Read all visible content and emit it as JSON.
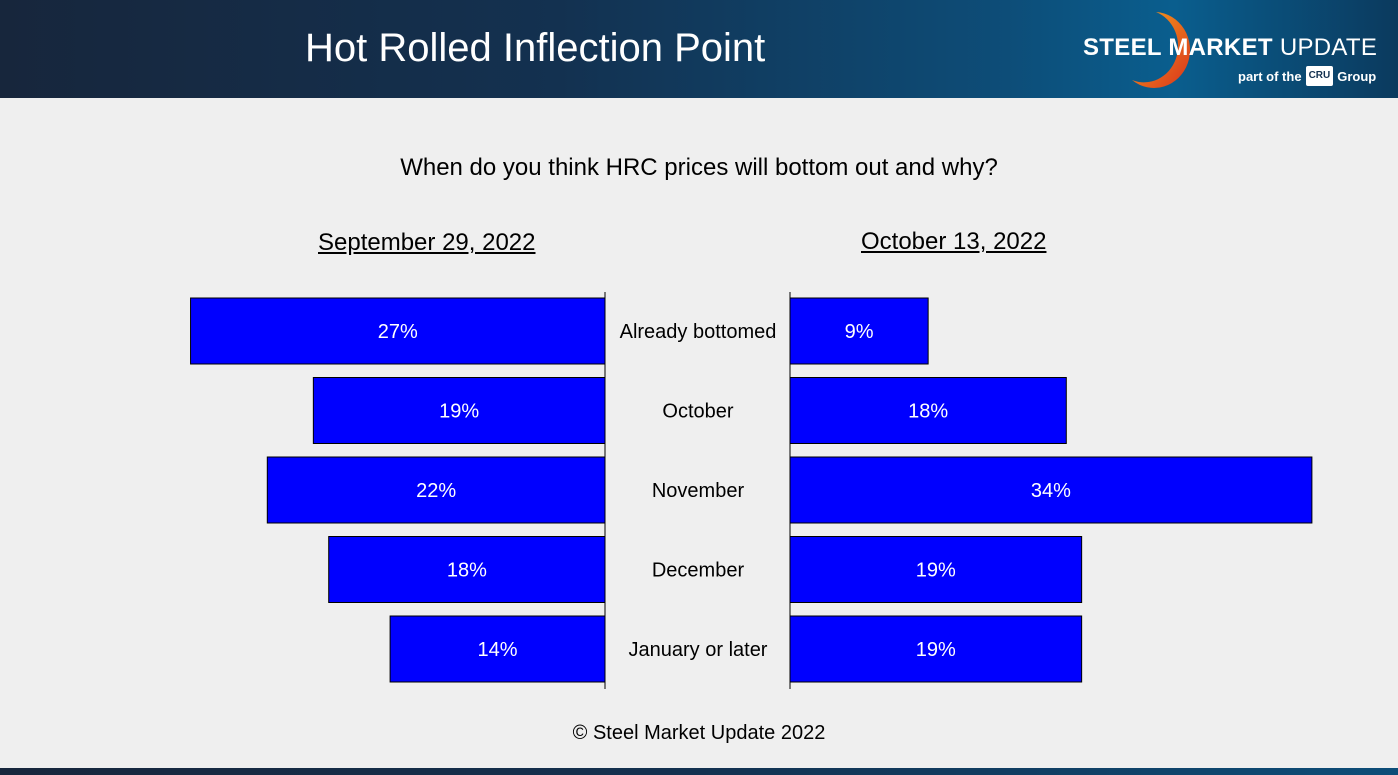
{
  "header": {
    "title": "Hot Rolled Inflection Point",
    "logo_bold": "STEEL MARKET",
    "logo_light": "UPDATE",
    "logo_sub_prefix": "part of the",
    "logo_badge": "CRU",
    "logo_sub_suffix": "Group"
  },
  "colors": {
    "bar": "#0000ff",
    "bar_border": "#000000",
    "label": "#ffffff"
  },
  "chart_data": {
    "type": "bar",
    "title": "When do you think HRC prices will bottom out and why?",
    "categories": [
      "Already bottomed",
      "October",
      "November",
      "December",
      "January or later"
    ],
    "series": [
      {
        "name": "September 29, 2022",
        "values": [
          27,
          19,
          22,
          18,
          14
        ],
        "labels": [
          "27%",
          "19%",
          "22%",
          "18%",
          "14%"
        ]
      },
      {
        "name": "October 13, 2022",
        "values": [
          9,
          18,
          34,
          19,
          19
        ],
        "labels": [
          "9%",
          "18%",
          "34%",
          "19%",
          "19%"
        ]
      }
    ],
    "unit": "%",
    "orientation": "horizontal-butterfly"
  },
  "footer": {
    "copyright": "© Steel Market Update 2022"
  }
}
